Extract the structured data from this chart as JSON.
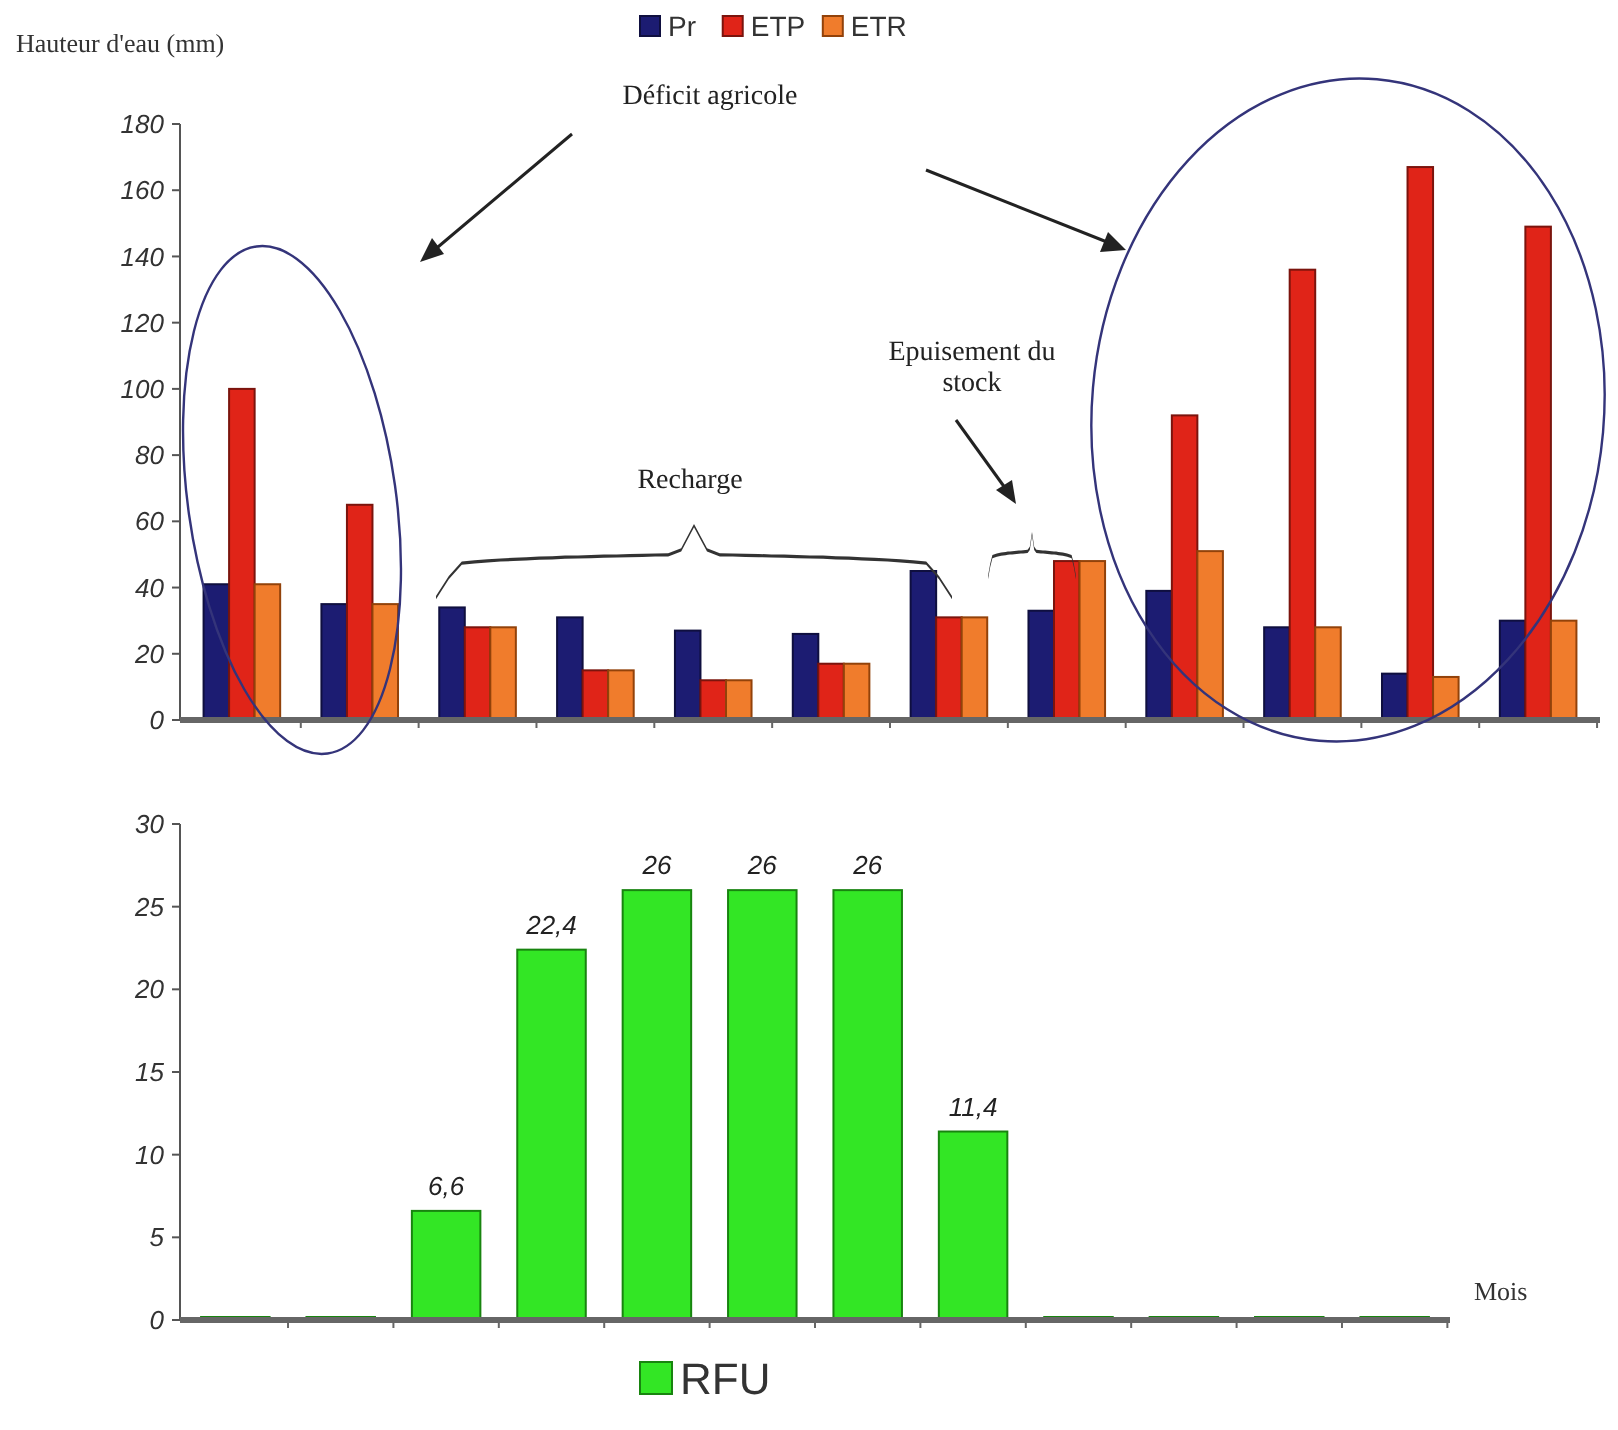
{
  "chart_data": [
    {
      "type": "bar",
      "ylabel": "Hauteur d'eau (mm)",
      "categories": [
        null,
        null,
        null,
        null,
        null,
        null,
        null,
        null,
        null,
        null,
        null,
        null
      ],
      "series": [
        {
          "name": "Pr",
          "color": "#1c1c72",
          "values": [
            41,
            35,
            34,
            31,
            27,
            26,
            45,
            33,
            39,
            28,
            14,
            30
          ]
        },
        {
          "name": "ETP",
          "color": "#e02418",
          "values": [
            100,
            65,
            28,
            15,
            12,
            17,
            31,
            48,
            92,
            136,
            167,
            149
          ]
        },
        {
          "name": "ETR",
          "color": "#f07c2c",
          "values": [
            41,
            35,
            28,
            15,
            12,
            17,
            31,
            48,
            51,
            28,
            13,
            30
          ]
        }
      ],
      "ylim": [
        0,
        180
      ],
      "yticks": [
        0,
        20,
        40,
        60,
        80,
        100,
        120,
        140,
        160,
        180
      ],
      "grid": false,
      "legend": "top",
      "annotations": [
        "Déficit agricole",
        "Recharge",
        "Epuisement du stock"
      ]
    },
    {
      "type": "bar",
      "xlabel": "Mois",
      "categories": [
        null,
        null,
        null,
        null,
        null,
        null,
        null,
        null,
        null,
        null,
        null,
        null
      ],
      "series": [
        {
          "name": "RFU",
          "color": "#33e625",
          "values": [
            0,
            0,
            6.6,
            22.4,
            26,
            26,
            26,
            11.4,
            0,
            0,
            0,
            0
          ],
          "value_labels": [
            null,
            null,
            "6,6",
            "22,4",
            "26",
            "26",
            "26",
            "11,4",
            null,
            null,
            null,
            null
          ]
        }
      ],
      "ylim": [
        0,
        30
      ],
      "yticks": [
        0,
        5,
        10,
        15,
        20,
        25,
        30
      ],
      "grid": false,
      "legend": "bottom"
    }
  ]
}
